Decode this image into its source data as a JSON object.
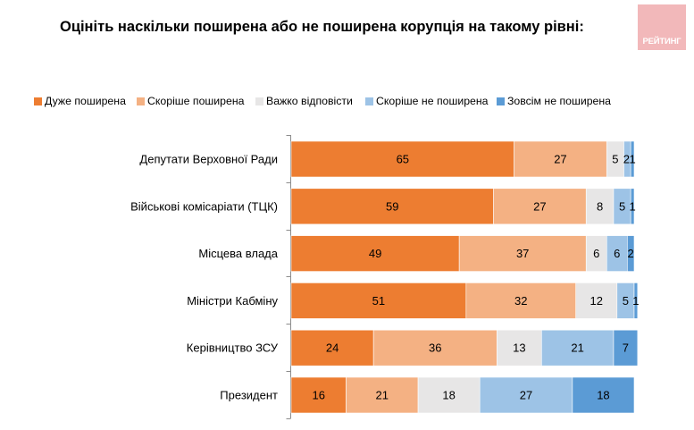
{
  "header": {
    "title": "Оцініть наскільки поширена або не поширена корупція на такому рівні:",
    "logo_text": "РЕЙТИНГ"
  },
  "colors": {
    "logo_bg": "#f2b8ba"
  },
  "chart_data": {
    "type": "bar",
    "orientation": "horizontal",
    "stacked": true,
    "title": "Оцініть наскільки поширена або не поширена корупція на такому рівні:",
    "xlabel": "",
    "ylabel": "",
    "xlim": [
      0,
      100
    ],
    "grid": false,
    "legend_position": "top",
    "categories": [
      "Депутати Верховної Ради",
      "Військові комісаріати (ТЦК)",
      "Місцева влада",
      "Міністри Кабміну",
      "Керівництво ЗСУ",
      "Президент"
    ],
    "series": [
      {
        "name": "Дуже поширена",
        "color": "#ed7d31",
        "values": [
          65,
          59,
          49,
          51,
          24,
          16
        ]
      },
      {
        "name": "Скоріше поширена",
        "color": "#f4b183",
        "values": [
          27,
          27,
          37,
          32,
          36,
          21
        ]
      },
      {
        "name": "Важко відповісти",
        "color": "#e7e6e6",
        "values": [
          5,
          8,
          6,
          12,
          13,
          18
        ]
      },
      {
        "name": "Скоріше не поширена",
        "color": "#9dc3e6",
        "values": [
          2,
          5,
          6,
          5,
          21,
          27
        ]
      },
      {
        "name": "Зовсім не поширена",
        "color": "#5b9bd5",
        "values": [
          1,
          1,
          2,
          1,
          7,
          18
        ]
      }
    ]
  }
}
